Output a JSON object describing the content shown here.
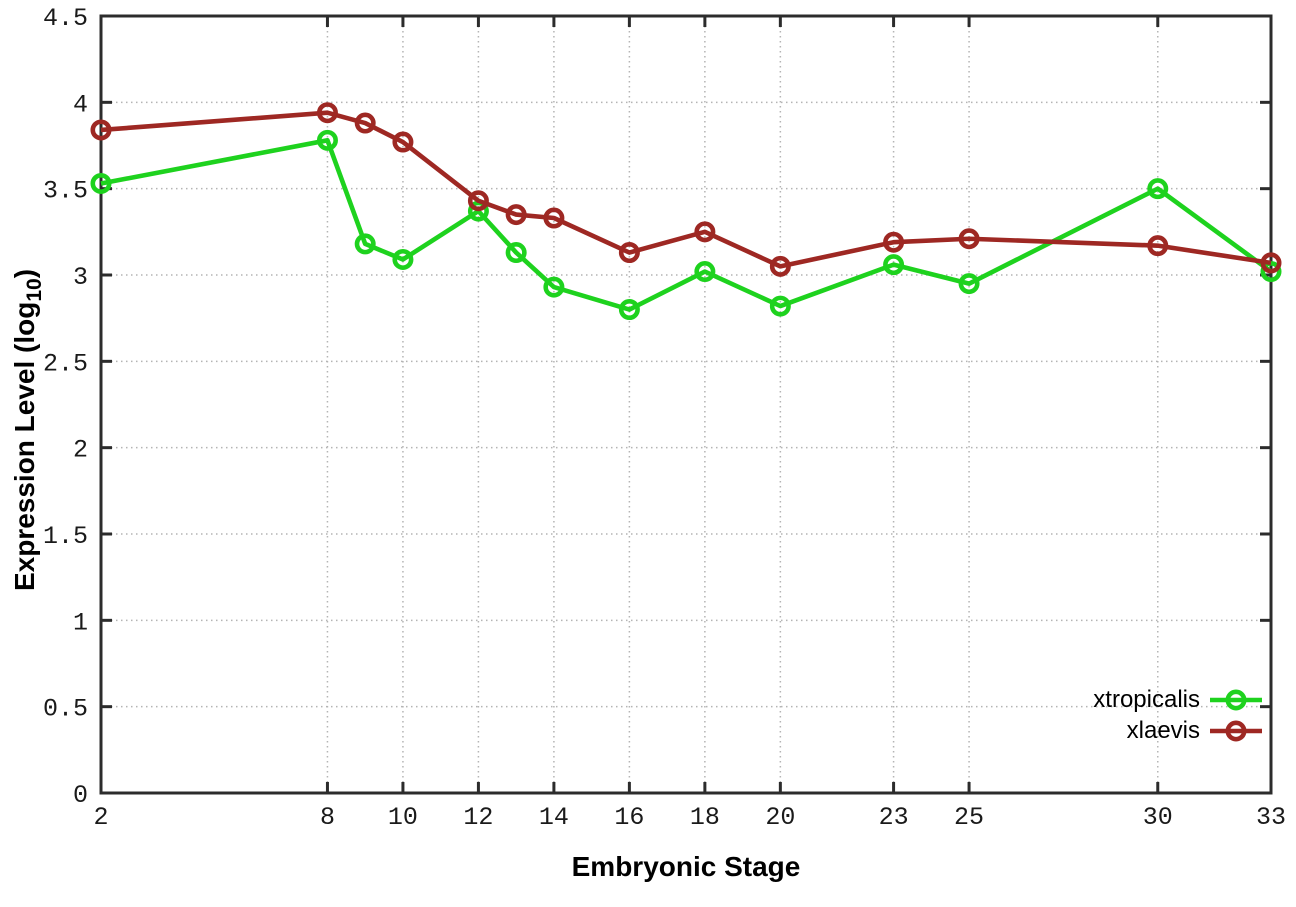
{
  "chart_data": {
    "type": "line",
    "title": "",
    "xlabel": "Embryonic Stage",
    "ylabel": "Expression Level (log10)",
    "ylabel_parts": {
      "prefix": "Expression Level (log",
      "subscript": "10",
      "suffix": ")"
    },
    "xlim": [
      2,
      33
    ],
    "ylim": [
      0,
      4.5
    ],
    "x_tick_values": [
      2,
      8,
      10,
      12,
      14,
      16,
      18,
      20,
      23,
      25,
      30,
      33
    ],
    "x_tick_labels": [
      "2",
      "8",
      "10",
      "12",
      "14",
      "16",
      "18",
      "20",
      "23",
      "25",
      "30",
      "33"
    ],
    "y_tick_values": [
      0,
      0.5,
      1,
      1.5,
      2,
      2.5,
      3,
      3.5,
      4,
      4.5
    ],
    "y_tick_labels": [
      "0",
      "0.5",
      "1",
      "1.5",
      "2",
      "2.5",
      "3",
      "3.5",
      "4",
      "4.5"
    ],
    "grid": true,
    "legend_position": "inside-bottom-right",
    "x": [
      2,
      8,
      9,
      10,
      12,
      13,
      14,
      16,
      18,
      20,
      23,
      25,
      30,
      33
    ],
    "series": [
      {
        "name": "xtropicalis",
        "color": "#1ed21e",
        "marker": "open-circle",
        "values": [
          3.53,
          3.78,
          3.18,
          3.09,
          3.37,
          3.13,
          2.93,
          2.8,
          3.02,
          2.82,
          3.06,
          2.95,
          3.5,
          3.02
        ]
      },
      {
        "name": "xlaevis",
        "color": "#9e2823",
        "marker": "open-circle",
        "values": [
          3.84,
          3.94,
          3.88,
          3.77,
          3.43,
          3.35,
          3.33,
          3.13,
          3.25,
          3.05,
          3.19,
          3.21,
          3.17,
          3.07
        ]
      }
    ],
    "colors": {
      "grid": "#b4b4b4",
      "axis": "#2c2c2c",
      "text": "#000000"
    }
  }
}
